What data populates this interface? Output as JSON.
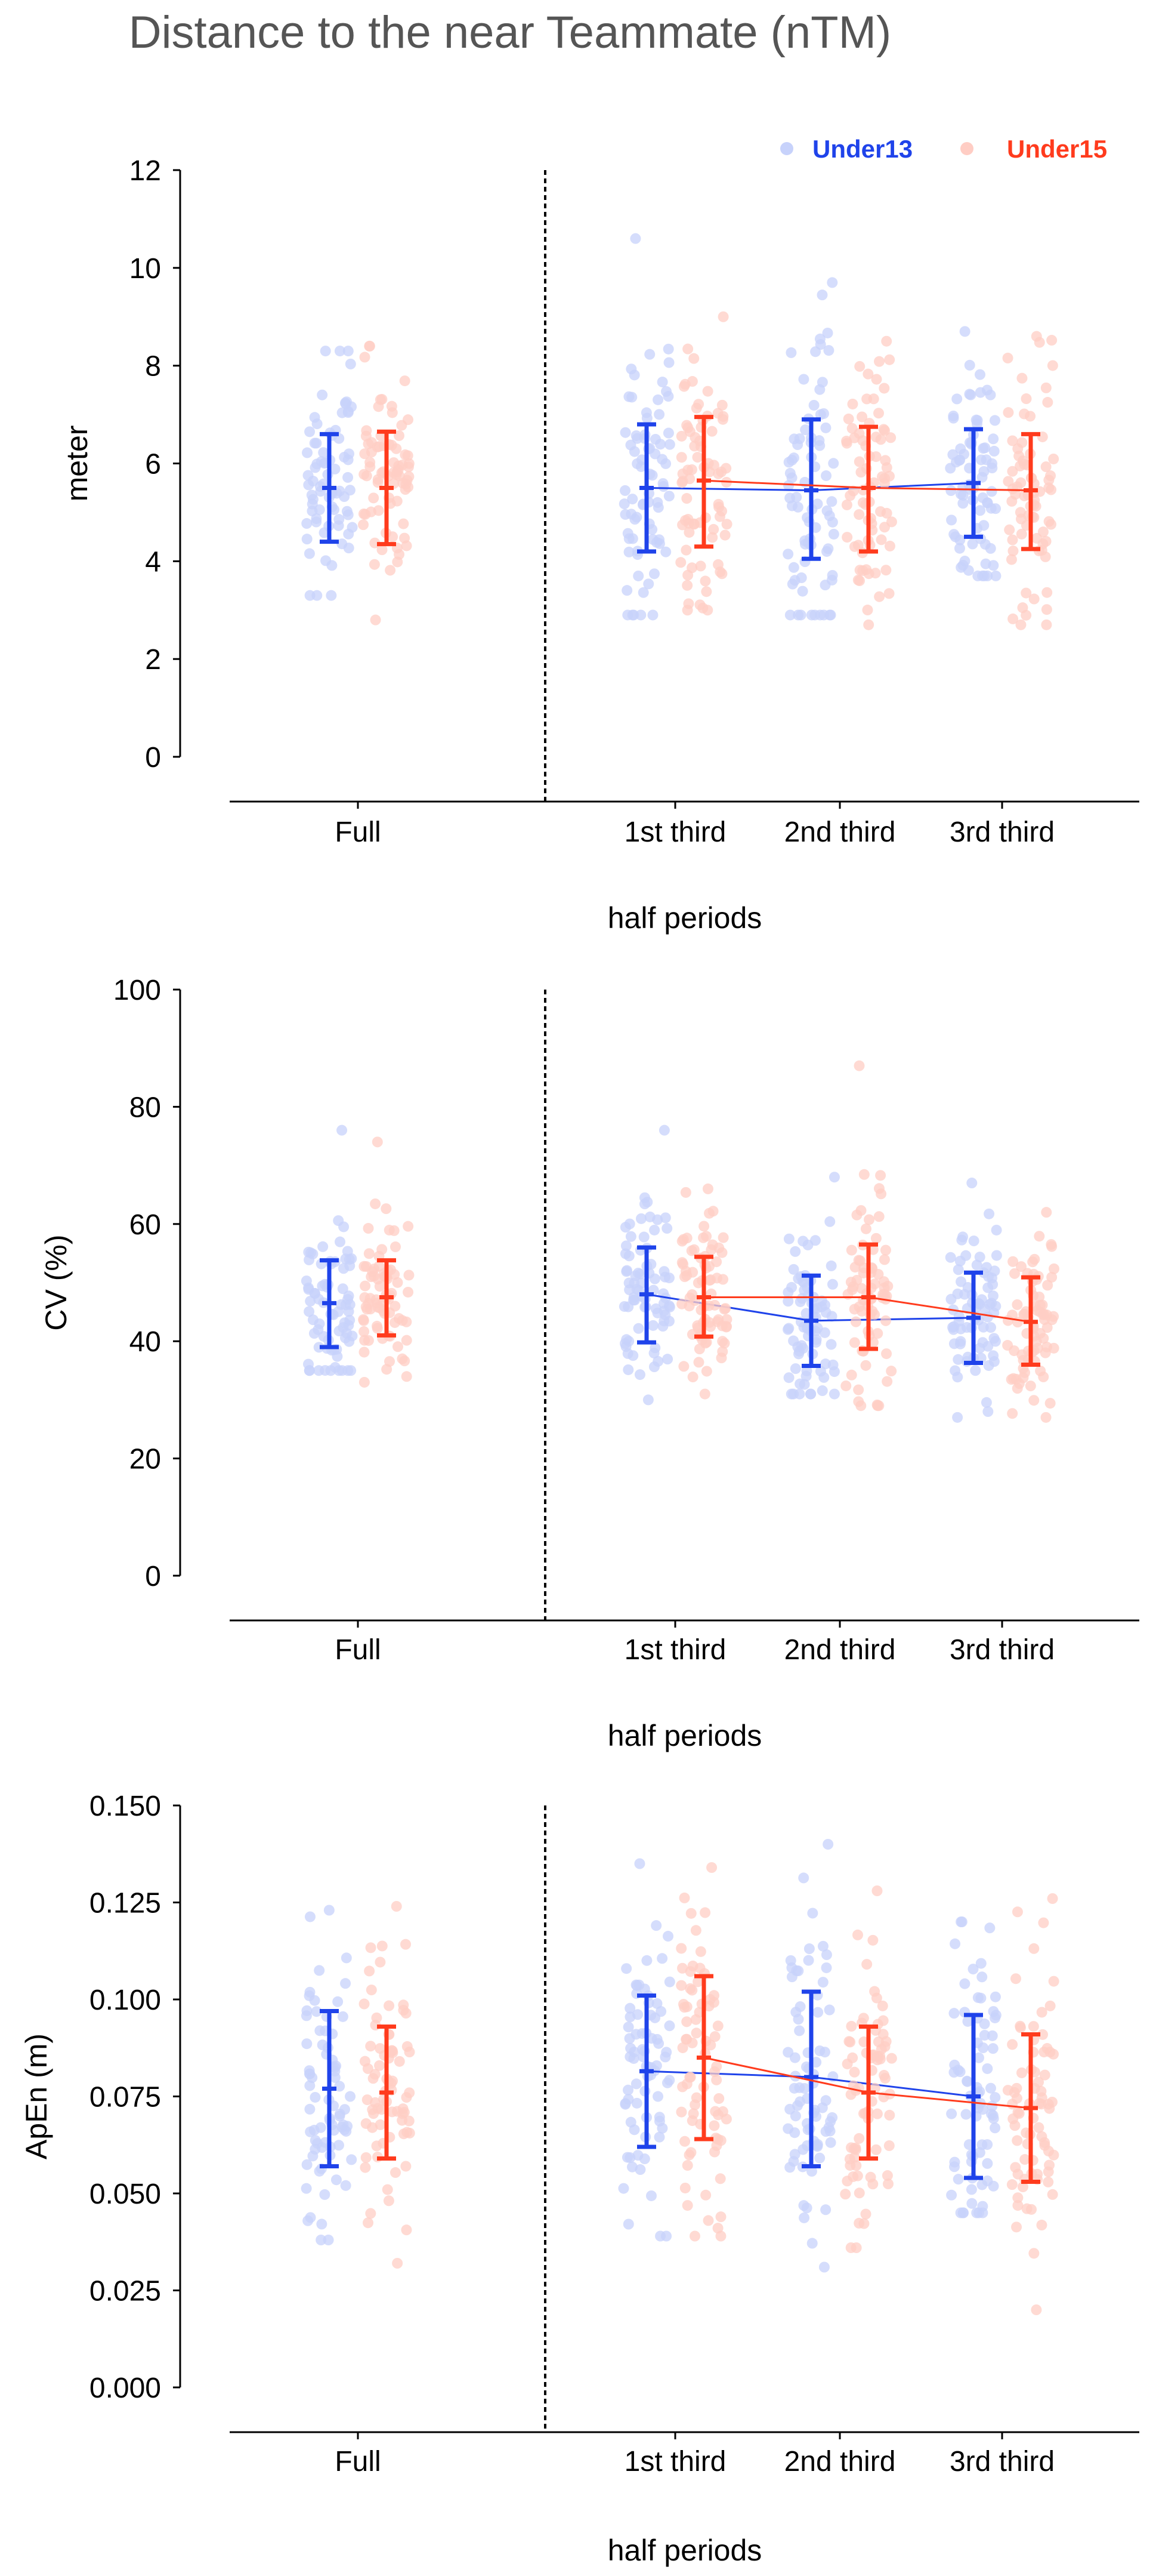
{
  "title": "Distance to the near Teammate (nTM)",
  "legend": {
    "items": [
      {
        "label": "Under13",
        "color": "#1f43ea",
        "light": "#c7d2fb"
      },
      {
        "label": "Under15",
        "color": "#ff3b1d",
        "light": "#ffcdc4"
      }
    ]
  },
  "chart_data": [
    {
      "type": "scatter",
      "title": "",
      "ylabel": "meter",
      "xlabel": "half periods",
      "ylim": [
        0,
        12
      ],
      "yticks": [
        0,
        2,
        4,
        6,
        8,
        10,
        12
      ],
      "tick_labels": [
        "0",
        "2",
        "4",
        "6",
        "8",
        "10",
        "12"
      ],
      "categories": [
        "Full",
        "1st third",
        "2nd third",
        "3rd third"
      ],
      "series": [
        {
          "name": "Under13",
          "mean": [
            5.5,
            5.5,
            5.45,
            5.6
          ],
          "sd_low": [
            4.4,
            4.2,
            4.05,
            4.5
          ],
          "sd_high": [
            6.6,
            6.8,
            6.9,
            6.7
          ],
          "range": [
            [
              3.3,
              8.3
            ],
            [
              2.9,
              10.6
            ],
            [
              2.9,
              9.7
            ],
            [
              3.7,
              8.7
            ]
          ]
        },
        {
          "name": "Under15",
          "mean": [
            5.5,
            5.65,
            5.5,
            5.45
          ],
          "sd_low": [
            4.35,
            4.3,
            4.2,
            4.25
          ],
          "sd_high": [
            6.65,
            6.95,
            6.75,
            6.6
          ],
          "range": [
            [
              2.8,
              8.4
            ],
            [
              3.0,
              9.0
            ],
            [
              2.7,
              8.5
            ],
            [
              2.7,
              8.6
            ]
          ]
        }
      ]
    },
    {
      "type": "scatter",
      "title": "",
      "ylabel": "CV (%)",
      "xlabel": "half periods",
      "ylim": [
        0,
        100
      ],
      "yticks": [
        0,
        20,
        40,
        60,
        80,
        100
      ],
      "tick_labels": [
        "0",
        "20",
        "40",
        "60",
        "80",
        "100"
      ],
      "categories": [
        "Full",
        "1st third",
        "2nd third",
        "3rd third"
      ],
      "series": [
        {
          "name": "Under13",
          "mean": [
            46.5,
            48,
            43.5,
            44
          ],
          "sd_low": [
            39,
            39.8,
            35.8,
            36.3
          ],
          "sd_high": [
            53.8,
            56,
            51.2,
            51.7
          ],
          "range": [
            [
              35,
              76
            ],
            [
              30,
              76
            ],
            [
              31,
              68
            ],
            [
              27,
              67
            ]
          ]
        },
        {
          "name": "Under15",
          "mean": [
            47.5,
            47.5,
            47.5,
            43.3
          ],
          "sd_low": [
            41,
            40.8,
            38.7,
            36
          ],
          "sd_high": [
            53.8,
            54.4,
            56.5,
            50.9
          ],
          "range": [
            [
              33,
              74
            ],
            [
              31,
              66
            ],
            [
              29,
              87
            ],
            [
              27,
              62
            ]
          ]
        }
      ]
    },
    {
      "type": "scatter",
      "title": "",
      "ylabel": "ApEn (m)",
      "xlabel": "half periods",
      "ylim": [
        0,
        0.15
      ],
      "yticks": [
        0,
        0.025,
        0.05,
        0.075,
        0.1,
        0.125,
        0.15
      ],
      "tick_labels": [
        "0.000",
        "0.025",
        "0.050",
        "0.075",
        "0.100",
        "0.125",
        "0.150"
      ],
      "categories": [
        "Full",
        "1st third",
        "2nd third",
        "3rd third"
      ],
      "series": [
        {
          "name": "Under13",
          "mean": [
            0.077,
            0.0815,
            0.08,
            0.075
          ],
          "sd_low": [
            0.057,
            0.062,
            0.057,
            0.054
          ],
          "sd_high": [
            0.097,
            0.101,
            0.102,
            0.096
          ],
          "range": [
            [
              0.038,
              0.123
            ],
            [
              0.039,
              0.135
            ],
            [
              0.031,
              0.14
            ],
            [
              0.045,
              0.12
            ]
          ]
        },
        {
          "name": "Under15",
          "mean": [
            0.076,
            0.085,
            0.076,
            0.072
          ],
          "sd_low": [
            0.059,
            0.064,
            0.059,
            0.053
          ],
          "sd_high": [
            0.093,
            0.106,
            0.093,
            0.091
          ],
          "range": [
            [
              0.032,
              0.124
            ],
            [
              0.039,
              0.134
            ],
            [
              0.036,
              0.128
            ],
            [
              0.02,
              0.126
            ]
          ]
        }
      ]
    }
  ]
}
